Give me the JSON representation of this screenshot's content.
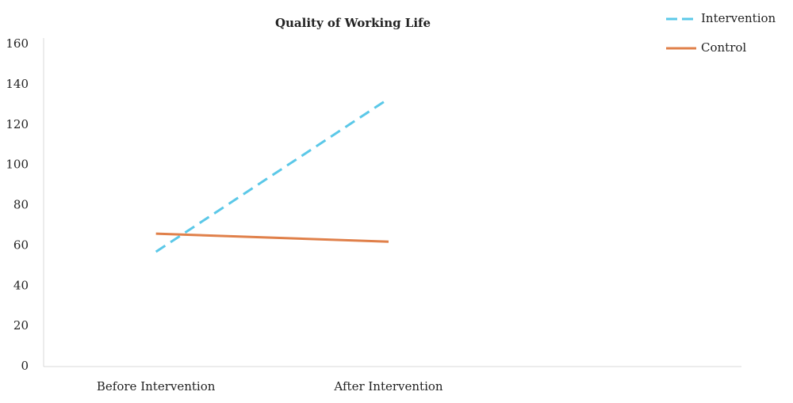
{
  "chart_data": {
    "type": "line",
    "title": "Quality of Working Life",
    "categories": [
      "Before Intervention",
      "After Intervention",
      null
    ],
    "series": [
      {
        "name": "Intervention",
        "color": "#5bc8e8",
        "line_style": "dashed",
        "values": [
          57,
          133,
          null
        ]
      },
      {
        "name": "Control",
        "color": "#e0804a",
        "line_style": "solid",
        "values": [
          66,
          62,
          null
        ]
      }
    ],
    "ylim": [
      0,
      160
    ],
    "yticks": [
      0,
      20,
      40,
      60,
      80,
      100,
      120,
      140,
      160
    ],
    "grid": false,
    "legend": "top-right"
  }
}
